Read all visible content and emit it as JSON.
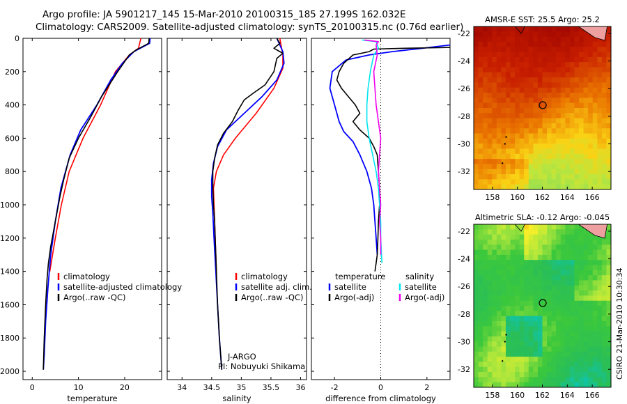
{
  "header": {
    "line1": "Argo profile: JA 5901217_145 15-Mar-2010 20100315_185 27.199S 162.032E",
    "line2": "Climatology: CARS2009. Satellite-adjusted climatology: synTS_20100315.nc (0.76d earlier)"
  },
  "credit": {
    "agency": "J-ARGO",
    "pi": "PI: Nobuyuki Shikama",
    "stamp": "CSIRO 21-Mar-2010 10:30:34"
  },
  "colors": {
    "climatology": "#ff0000",
    "satellite": "#0000ff",
    "argo": "#000000",
    "satellite_salinity": "#00e5ee",
    "argo_salinity": "#ee00ee"
  },
  "chart_data": [
    {
      "id": "temperature",
      "type": "line",
      "xlabel": "temperature",
      "ylabel": "",
      "xlim": [
        -2,
        28
      ],
      "ylim": [
        2050,
        0
      ],
      "xticks": [
        0,
        10,
        20
      ],
      "yticks": [
        0,
        200,
        400,
        600,
        800,
        1000,
        1200,
        1400,
        1600,
        1800,
        2000
      ],
      "legend": [
        "climatology",
        "satellite-adjusted climatology",
        "Argo(..raw -QC)"
      ],
      "series": [
        {
          "name": "climatology",
          "color": "#ff0000",
          "points": [
            [
              23.5,
              0
            ],
            [
              23,
              60
            ],
            [
              21,
              100
            ],
            [
              18,
              200
            ],
            [
              14.8,
              400
            ],
            [
              11,
              600
            ],
            [
              8,
              800
            ],
            [
              6.3,
              1000
            ],
            [
              5,
              1200
            ],
            [
              3.8,
              1400
            ]
          ]
        },
        {
          "name": "satellite-adjusted climatology",
          "color": "#0000ff",
          "points": [
            [
              25.5,
              0
            ],
            [
              25.4,
              30
            ],
            [
              22,
              80
            ],
            [
              19.5,
              150
            ],
            [
              17,
              250
            ],
            [
              14,
              400
            ],
            [
              10.5,
              550
            ],
            [
              8.2,
              700
            ],
            [
              6.2,
              900
            ],
            [
              5,
              1100
            ],
            [
              4,
              1300
            ],
            [
              3.4,
              1500
            ],
            [
              2.9,
              1700
            ],
            [
              2.6,
              1900
            ],
            [
              2.4,
              1990
            ]
          ]
        },
        {
          "name": "Argo(..raw -QC)",
          "color": "#000000",
          "points": [
            [
              25.3,
              0
            ],
            [
              25.2,
              30
            ],
            [
              22.5,
              70
            ],
            [
              21,
              100
            ],
            [
              18.5,
              200
            ],
            [
              15,
              350
            ],
            [
              12.5,
              480
            ],
            [
              10,
              600
            ],
            [
              8,
              720
            ],
            [
              6.8,
              850
            ],
            [
              6,
              950
            ],
            [
              5,
              1100
            ],
            [
              4,
              1250
            ],
            [
              3.5,
              1350
            ],
            [
              3.2,
              1450
            ],
            [
              2.9,
              1600
            ],
            [
              2.6,
              1800
            ],
            [
              2.5,
              1900
            ],
            [
              2.4,
              1990
            ]
          ]
        }
      ]
    },
    {
      "id": "salinity",
      "type": "line",
      "xlabel": "salinity",
      "ylabel": "",
      "xlim": [
        33.75,
        36.1
      ],
      "ylim": [
        2050,
        0
      ],
      "xticks": [
        34,
        34.5,
        35,
        35.5,
        36
      ],
      "legend": [
        "climatology",
        "satellite adj. clim.",
        "Argo(..raw -QC)"
      ],
      "series": [
        {
          "name": "climatology",
          "color": "#ff0000",
          "points": [
            [
              35.65,
              0
            ],
            [
              35.7,
              100
            ],
            [
              35.7,
              180
            ],
            [
              35.55,
              300
            ],
            [
              35.25,
              450
            ],
            [
              34.9,
              600
            ],
            [
              34.7,
              700
            ],
            [
              34.58,
              800
            ],
            [
              34.53,
              900
            ],
            [
              34.54,
              1000
            ],
            [
              34.55,
              1100
            ],
            [
              34.56,
              1200
            ],
            [
              34.57,
              1300
            ],
            [
              34.58,
              1400
            ]
          ]
        },
        {
          "name": "satellite adj. clim.",
          "color": "#0000ff",
          "points": [
            [
              35.6,
              0
            ],
            [
              35.7,
              80
            ],
            [
              35.72,
              150
            ],
            [
              35.6,
              250
            ],
            [
              35.35,
              350
            ],
            [
              35.05,
              450
            ],
            [
              34.75,
              550
            ],
            [
              34.6,
              650
            ],
            [
              34.53,
              750
            ],
            [
              34.5,
              850
            ],
            [
              34.5,
              950
            ],
            [
              34.52,
              1050
            ],
            [
              34.54,
              1200
            ],
            [
              34.57,
              1400
            ],
            [
              34.6,
              1600
            ],
            [
              34.63,
              1800
            ],
            [
              34.67,
              1990
            ]
          ]
        },
        {
          "name": "Argo(..raw -QC)",
          "color": "#000000",
          "points": [
            [
              35.6,
              0
            ],
            [
              35.65,
              30
            ],
            [
              35.55,
              60
            ],
            [
              35.7,
              90
            ],
            [
              35.6,
              120
            ],
            [
              35.55,
              200
            ],
            [
              35.4,
              280
            ],
            [
              35.2,
              330
            ],
            [
              35.05,
              370
            ],
            [
              34.95,
              430
            ],
            [
              34.85,
              500
            ],
            [
              34.7,
              570
            ],
            [
              34.6,
              640
            ],
            [
              34.55,
              720
            ],
            [
              34.52,
              800
            ],
            [
              34.52,
              900
            ],
            [
              34.53,
              1000
            ],
            [
              34.55,
              1100
            ],
            [
              34.56,
              1200
            ],
            [
              34.57,
              1300
            ],
            [
              34.58,
              1400
            ],
            [
              34.6,
              1600
            ],
            [
              34.63,
              1800
            ],
            [
              34.67,
              1990
            ]
          ]
        }
      ]
    },
    {
      "id": "difference",
      "type": "line",
      "xlabel": "difference from climatology",
      "ylabel": "",
      "xlim": [
        -3,
        3
      ],
      "ylim": [
        2050,
        0
      ],
      "xticks": [
        -2,
        0,
        2
      ],
      "legend_headers": [
        "temperature",
        "salinity"
      ],
      "legend": [
        "satellite",
        "Argo(-adj)",
        "satellite",
        "Argo(-adj)"
      ],
      "zero_line": 0,
      "series": [
        {
          "name": "satellite",
          "variable": "temperature",
          "color": "#0000ff",
          "points": [
            [
              3,
              40
            ],
            [
              1.8,
              60
            ],
            [
              0.5,
              80
            ],
            [
              -0.5,
              100
            ],
            [
              -1.5,
              130
            ],
            [
              -2.1,
              200
            ],
            [
              -2.2,
              300
            ],
            [
              -2.0,
              400
            ],
            [
              -1.8,
              500
            ],
            [
              -1.6,
              560
            ],
            [
              -1.2,
              620
            ],
            [
              -0.9,
              700
            ],
            [
              -0.6,
              800
            ],
            [
              -0.4,
              900
            ],
            [
              -0.3,
              1000
            ],
            [
              -0.25,
              1100
            ],
            [
              -0.2,
              1200
            ],
            [
              -0.15,
              1300
            ]
          ]
        },
        {
          "name": "Argo(-adj)",
          "variable": "temperature",
          "color": "#000000",
          "points": [
            [
              3,
              55
            ],
            [
              1,
              60
            ],
            [
              -0.3,
              65
            ],
            [
              -0.5,
              80
            ],
            [
              -1.2,
              100
            ],
            [
              -1.6,
              150
            ],
            [
              -1.8,
              200
            ],
            [
              -1.9,
              250
            ],
            [
              -1.7,
              300
            ],
            [
              -1.4,
              350
            ],
            [
              -1.1,
              400
            ],
            [
              -0.9,
              450
            ],
            [
              -1.2,
              500
            ],
            [
              -0.9,
              550
            ],
            [
              -0.5,
              600
            ],
            [
              -0.3,
              650
            ],
            [
              -0.15,
              700
            ],
            [
              -0.1,
              800
            ],
            [
              -0.05,
              900
            ],
            [
              -0.05,
              1000
            ],
            [
              -0.1,
              1100
            ],
            [
              -0.12,
              1200
            ],
            [
              -0.15,
              1300
            ],
            [
              -0.2,
              1350
            ],
            [
              -0.25,
              1400
            ]
          ]
        },
        {
          "name": "satellite",
          "variable": "salinity",
          "color": "#00e5ee",
          "points": [
            [
              -0.8,
              10
            ],
            [
              -0.2,
              20
            ],
            [
              -0.1,
              60
            ],
            [
              -0.3,
              100
            ],
            [
              -0.45,
              200
            ],
            [
              -0.55,
              300
            ],
            [
              -0.6,
              400
            ],
            [
              -0.6,
              500
            ],
            [
              -0.5,
              600
            ],
            [
              -0.35,
              700
            ],
            [
              -0.2,
              800
            ],
            [
              -0.1,
              900
            ],
            [
              -0.05,
              1000
            ],
            [
              0,
              1100
            ],
            [
              0,
              1200
            ],
            [
              0.05,
              1350
            ]
          ]
        },
        {
          "name": "Argo(-adj)",
          "variable": "salinity",
          "color": "#ee00ee",
          "points": [
            [
              -0.7,
              10
            ],
            [
              -0.1,
              20
            ],
            [
              -0.2,
              40
            ],
            [
              -0.15,
              100
            ],
            [
              -0.3,
              200
            ],
            [
              -0.25,
              300
            ],
            [
              -0.2,
              400
            ],
            [
              -0.1,
              500
            ],
            [
              0,
              600
            ],
            [
              -0.05,
              700
            ],
            [
              -0.1,
              800
            ],
            [
              -0.05,
              900
            ],
            [
              0,
              1000
            ],
            [
              -0.05,
              1100
            ],
            [
              0,
              1200
            ],
            [
              0,
              1300
            ]
          ]
        }
      ]
    },
    {
      "id": "sst_map",
      "type": "heatmap",
      "title": "AMSR-E SST: 25.5 Argo: 25.2",
      "xlim": [
        156.5,
        167.5
      ],
      "ylim": [
        -33.3,
        -21.5
      ],
      "xticks": [
        158,
        160,
        162,
        164,
        166
      ],
      "yticks": [
        -22,
        -24,
        -26,
        -28,
        -30,
        -32
      ],
      "xtick_labels": [
        "158",
        "160",
        "162",
        "164",
        "166"
      ],
      "ytick_labels": [
        "-22",
        "-24",
        "-26",
        "-28",
        "-30",
        "-32"
      ],
      "marker": [
        162.03,
        -27.2
      ],
      "grid_size": [
        30,
        32
      ]
    },
    {
      "id": "sla_map",
      "type": "heatmap",
      "title": "Altimetric SLA: -0.12 Argo: -0.045",
      "xlim": [
        156.5,
        167.5
      ],
      "ylim": [
        -33.3,
        -21.5
      ],
      "xticks": [
        158,
        160,
        162,
        164,
        166
      ],
      "yticks": [
        -22,
        -24,
        -26,
        -28,
        -30,
        -32
      ],
      "xtick_labels": [
        "158",
        "160",
        "162",
        "164",
        "166"
      ],
      "ytick_labels": [
        "-22",
        "-24",
        "-26",
        "-28",
        "-30",
        "-32"
      ],
      "marker": [
        162.03,
        -27.2
      ],
      "grid_size": [
        30,
        32
      ]
    }
  ]
}
